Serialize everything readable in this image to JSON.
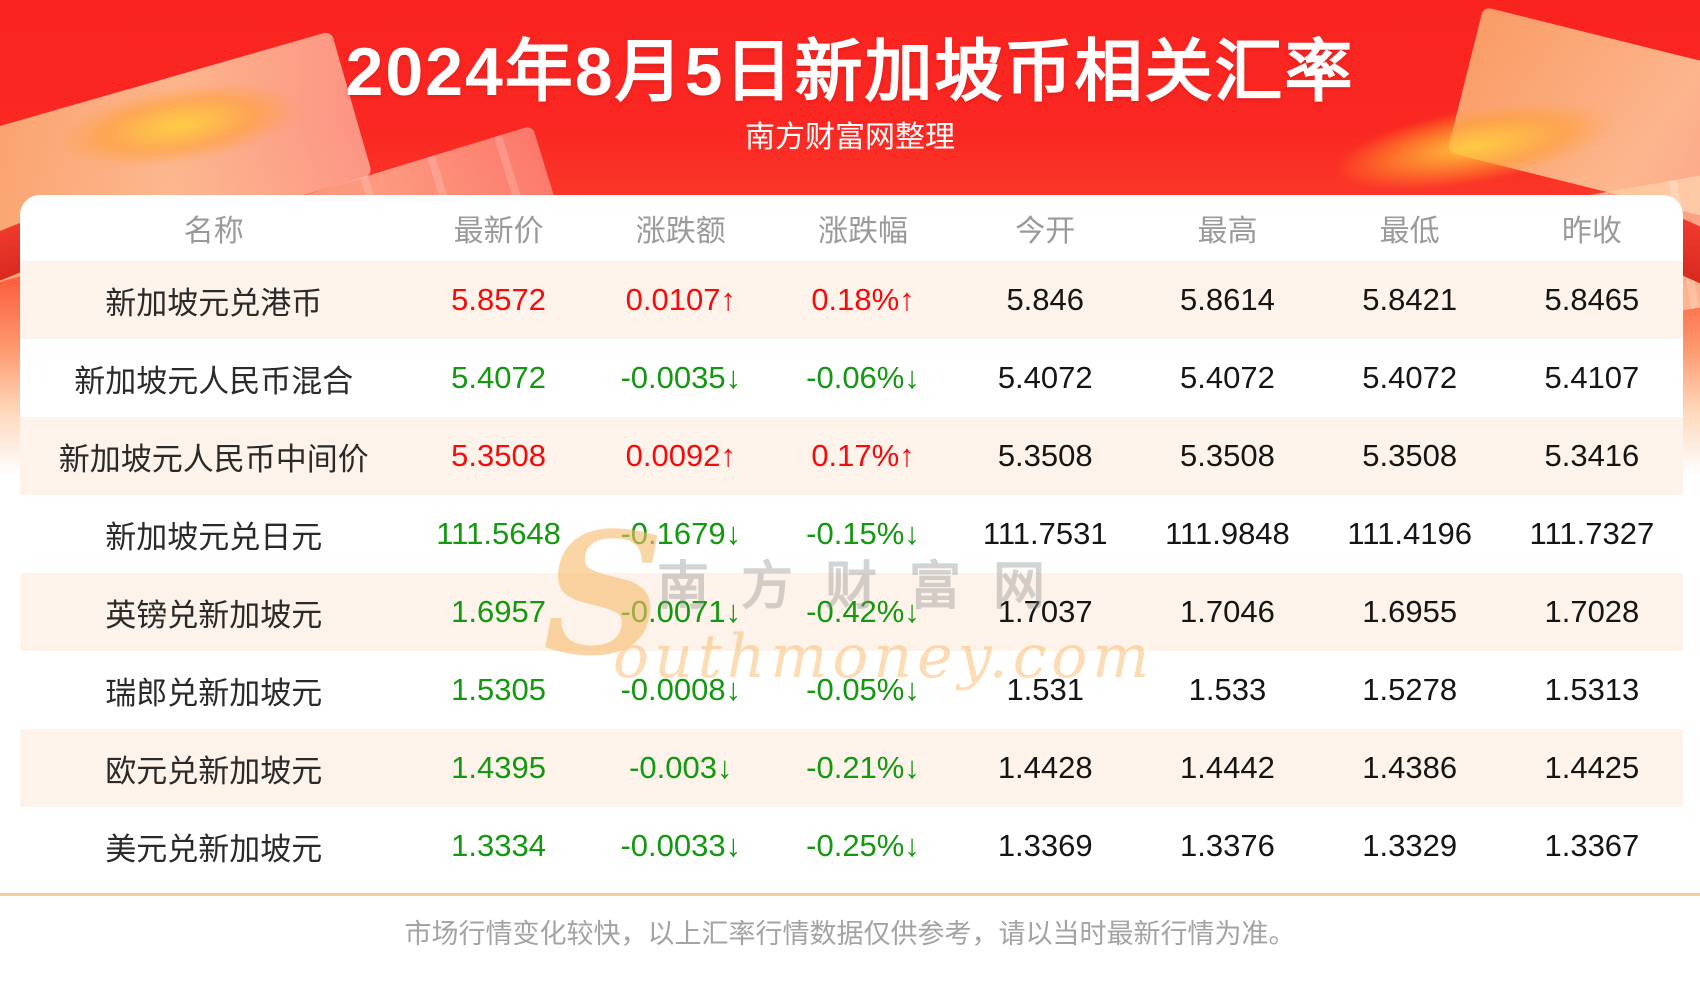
{
  "header": {
    "title": "2024年8月5日新加坡币相关汇率",
    "subtitle": "南方财富网整理"
  },
  "chart_data": {
    "type": "table",
    "title": "2024年8月5日新加坡币相关汇率",
    "subtitle": "南方财富网整理",
    "columns": [
      "名称",
      "最新价",
      "涨跌额",
      "涨跌幅",
      "今开",
      "最高",
      "最低",
      "昨收"
    ],
    "rows": [
      {
        "name": "新加坡元兑港币",
        "latest": "5.8572",
        "change": "0.0107↑",
        "change_pct": "0.18%↑",
        "trend": "up",
        "open": "5.846",
        "high": "5.8614",
        "low": "5.8421",
        "prev_close": "5.8465"
      },
      {
        "name": "新加坡元人民币混合",
        "latest": "5.4072",
        "change": "-0.0035↓",
        "change_pct": "-0.06%↓",
        "trend": "down",
        "open": "5.4072",
        "high": "5.4072",
        "low": "5.4072",
        "prev_close": "5.4107"
      },
      {
        "name": "新加坡元人民币中间价",
        "latest": "5.3508",
        "change": "0.0092↑",
        "change_pct": "0.17%↑",
        "trend": "up",
        "open": "5.3508",
        "high": "5.3508",
        "low": "5.3508",
        "prev_close": "5.3416"
      },
      {
        "name": "新加坡元兑日元",
        "latest": "111.5648",
        "change": "-0.1679↓",
        "change_pct": "-0.15%↓",
        "trend": "down",
        "open": "111.7531",
        "high": "111.9848",
        "low": "111.4196",
        "prev_close": "111.7327"
      },
      {
        "name": "英镑兑新加坡元",
        "latest": "1.6957",
        "change": "-0.0071↓",
        "change_pct": "-0.42%↓",
        "trend": "down",
        "open": "1.7037",
        "high": "1.7046",
        "low": "1.6955",
        "prev_close": "1.7028"
      },
      {
        "name": "瑞郎兑新加坡元",
        "latest": "1.5305",
        "change": "-0.0008↓",
        "change_pct": "-0.05%↓",
        "trend": "down",
        "open": "1.531",
        "high": "1.533",
        "low": "1.5278",
        "prev_close": "1.5313"
      },
      {
        "name": "欧元兑新加坡元",
        "latest": "1.4395",
        "change": "-0.003↓",
        "change_pct": "-0.21%↓",
        "trend": "down",
        "open": "1.4428",
        "high": "1.4442",
        "low": "1.4386",
        "prev_close": "1.4425"
      },
      {
        "name": "美元兑新加坡元",
        "latest": "1.3334",
        "change": "-0.0033↓",
        "change_pct": "-0.25%↓",
        "trend": "down",
        "open": "1.3369",
        "high": "1.3376",
        "low": "1.3329",
        "prev_close": "1.3367"
      }
    ]
  },
  "watermark": {
    "initial": "S",
    "cn": "南方财富网",
    "en": "outhmoney.com"
  },
  "footer": {
    "disclaimer": "市场行情变化较快，以上汇率行情数据仅供参考，请以当时最新行情为准。"
  },
  "colors": {
    "up": "#f60b0b",
    "down": "#13980f",
    "hero_red": "#fa2722",
    "row_alt": "#fdf3ea",
    "divider": "#f6cd97",
    "title_text": "#ffffff",
    "header_text": "#9a9a9a"
  }
}
